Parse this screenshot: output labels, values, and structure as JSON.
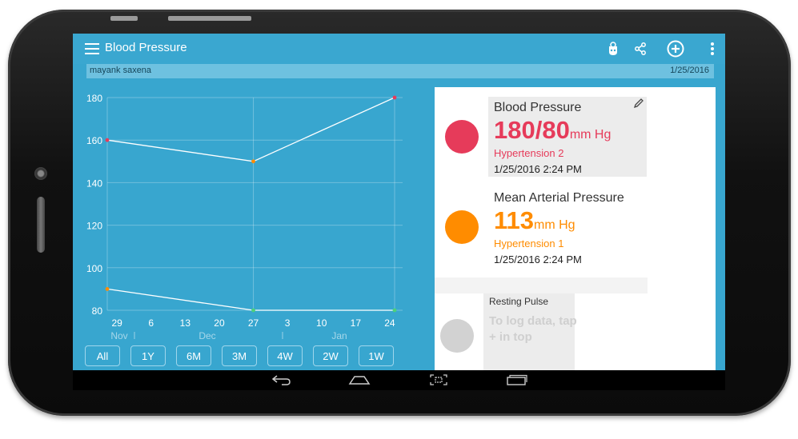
{
  "app": {
    "title": "Blood Pressure"
  },
  "subbar": {
    "user": "mayank saxena",
    "date": "1/25/2016"
  },
  "toolbar": {
    "icons": [
      "hand-icon",
      "share-icon",
      "add-circle-icon",
      "overflow-menu-icon"
    ]
  },
  "chart_data": {
    "type": "line",
    "y_ticks": [
      "180",
      "160",
      "140",
      "120",
      "100",
      "80"
    ],
    "ylim": [
      80,
      180
    ],
    "x_day_ticks": [
      "29",
      "6",
      "13",
      "20",
      "27",
      "3",
      "10",
      "17",
      "24"
    ],
    "x_month_ticks": [
      "Nov",
      "Dec",
      "Jan"
    ],
    "series": [
      {
        "values": [
          {
            "date": "2015-11-27",
            "y": 160
          },
          {
            "date": "2015-12-27",
            "y": 150
          },
          {
            "date": "2016-01-25",
            "y": 180
          }
        ]
      },
      {
        "values": [
          {
            "date": "2015-11-27",
            "y": 90
          },
          {
            "date": "2015-12-27",
            "y": 80
          },
          {
            "date": "2016-01-25",
            "y": 80
          }
        ]
      }
    ],
    "grid": true,
    "colors": {
      "line": "#ffffff",
      "points": [
        "#e63b5a",
        "#ff8c00",
        "#e63b5a",
        "#ff8c00",
        "#4cd07a",
        "#4cd07a"
      ]
    }
  },
  "range_buttons": [
    "All",
    "1Y",
    "6M",
    "3M",
    "4W",
    "2W",
    "1W"
  ],
  "cards": {
    "bp": {
      "title": "Blood Pressure",
      "value": "180/80",
      "unit": "mm Hg",
      "status": "Hypertension 2",
      "time": "1/25/2016 2:24 PM",
      "color": "#e63b5a"
    },
    "map": {
      "title": "Mean Arterial Pressure",
      "value": "113",
      "unit": "mm Hg",
      "status": "Hypertension 1",
      "time": "1/25/2016 2:24 PM",
      "color": "#ff8c00"
    },
    "pulse": {
      "title": "Resting Pulse",
      "hint": "To log data, tap + in top"
    }
  },
  "navbar": {
    "icons": [
      "back-icon",
      "home-icon",
      "screenshot-icon",
      "recents-icon"
    ]
  }
}
